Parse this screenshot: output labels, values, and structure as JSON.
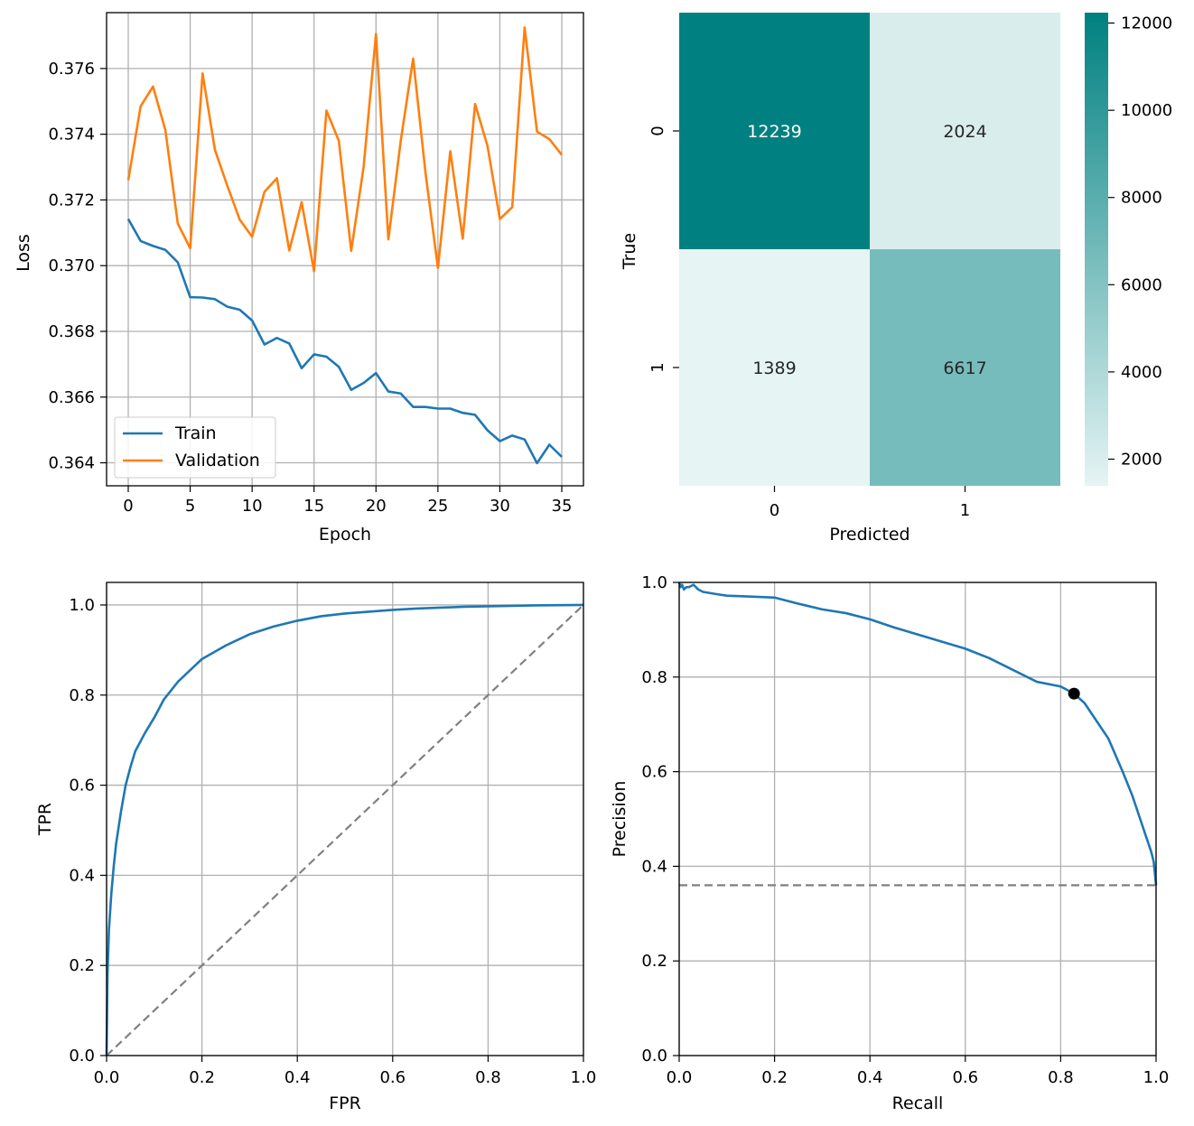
{
  "chart_data": [
    {
      "type": "line",
      "xlabel": "Epoch",
      "ylabel": "Loss",
      "xlim": [
        -1.75,
        36.75
      ],
      "ylim": [
        0.3633,
        0.3777
      ],
      "xticks": [
        0,
        5,
        10,
        15,
        20,
        25,
        30,
        35
      ],
      "yticks": [
        0.364,
        0.366,
        0.368,
        0.37,
        0.372,
        0.374,
        0.376
      ],
      "grid": true,
      "legend": "lower-left",
      "x": [
        0,
        1,
        2,
        3,
        4,
        5,
        6,
        7,
        8,
        9,
        10,
        11,
        12,
        13,
        14,
        15,
        16,
        17,
        18,
        19,
        20,
        21,
        22,
        23,
        24,
        25,
        26,
        27,
        28,
        29,
        30,
        31,
        32,
        33,
        34,
        35
      ],
      "series": [
        {
          "name": "Train",
          "color": "#1f77b4",
          "values": [
            0.37142,
            0.37075,
            0.3706,
            0.37048,
            0.3701,
            0.36904,
            0.36903,
            0.36898,
            0.36875,
            0.36866,
            0.36833,
            0.3676,
            0.3678,
            0.36763,
            0.36688,
            0.3673,
            0.36723,
            0.36692,
            0.36622,
            0.36643,
            0.36673,
            0.36617,
            0.36611,
            0.3657,
            0.3657,
            0.36565,
            0.36565,
            0.36552,
            0.36546,
            0.36499,
            0.36466,
            0.36483,
            0.36471,
            0.36399,
            0.36455,
            0.36418
          ]
        },
        {
          "name": "Validation",
          "color": "#ff7f0e",
          "values": [
            0.3726,
            0.37485,
            0.37545,
            0.37412,
            0.37128,
            0.37053,
            0.37585,
            0.37352,
            0.37243,
            0.3714,
            0.37088,
            0.37225,
            0.37266,
            0.37046,
            0.37193,
            0.36983,
            0.37472,
            0.3738,
            0.37045,
            0.373,
            0.37705,
            0.3708,
            0.3738,
            0.3763,
            0.37282,
            0.36993,
            0.37348,
            0.37082,
            0.37492,
            0.37365,
            0.37142,
            0.37178,
            0.37725,
            0.37408,
            0.37385,
            0.37337
          ]
        }
      ]
    },
    {
      "type": "heatmap",
      "xlabel": "Predicted",
      "ylabel": "True",
      "x_categories": [
        "0",
        "1"
      ],
      "y_categories": [
        "0",
        "1"
      ],
      "matrix": [
        [
          12239,
          2024
        ],
        [
          1389,
          6617
        ]
      ],
      "colorbar": {
        "min": 1389,
        "max": 12239,
        "ticks": [
          "2000",
          "4000",
          "6000",
          "8000",
          "10000",
          "12000"
        ],
        "color_low": "#e6f4f4",
        "color_high": "#008080"
      }
    },
    {
      "type": "line",
      "xlabel": "FPR",
      "ylabel": "TPR",
      "xlim": [
        0,
        1
      ],
      "ylim": [
        0,
        1.05
      ],
      "xticks": [
        "0.0",
        "0.2",
        "0.4",
        "0.6",
        "0.8",
        "1.0"
      ],
      "yticks": [
        "0.0",
        "0.2",
        "0.4",
        "0.6",
        "0.8",
        "1.0"
      ],
      "grid": true,
      "series": [
        {
          "color": "#1f77b4",
          "x": [
            0,
            0.002,
            0.005,
            0.01,
            0.015,
            0.02,
            0.03,
            0.04,
            0.05,
            0.06,
            0.08,
            0.1,
            0.12,
            0.15,
            0.18,
            0.2,
            0.25,
            0.3,
            0.35,
            0.4,
            0.45,
            0.5,
            0.55,
            0.6,
            0.65,
            0.7,
            0.75,
            0.8,
            0.85,
            0.9,
            0.95,
            1.0
          ],
          "y": [
            0,
            0.18,
            0.28,
            0.36,
            0.42,
            0.47,
            0.54,
            0.6,
            0.64,
            0.675,
            0.715,
            0.75,
            0.79,
            0.83,
            0.86,
            0.88,
            0.91,
            0.935,
            0.952,
            0.965,
            0.975,
            0.981,
            0.985,
            0.989,
            0.992,
            0.994,
            0.996,
            0.997,
            0.998,
            0.999,
            0.9995,
            1.0
          ]
        },
        {
          "color": "#808080",
          "style": "dashed",
          "x": [
            0,
            1
          ],
          "y": [
            0,
            1
          ]
        }
      ]
    },
    {
      "type": "line",
      "xlabel": "Recall",
      "ylabel": "Precision",
      "xlim": [
        0,
        1
      ],
      "ylim": [
        0,
        1
      ],
      "xticks": [
        "0.0",
        "0.2",
        "0.4",
        "0.6",
        "0.8",
        "1.0"
      ],
      "yticks": [
        "0.0",
        "0.2",
        "0.4",
        "0.6",
        "0.8",
        "1.0"
      ],
      "grid": true,
      "series": [
        {
          "color": "#1f77b4",
          "x": [
            0,
            0.003,
            0.006,
            0.01,
            0.015,
            0.02,
            0.03,
            0.04,
            0.05,
            0.08,
            0.1,
            0.15,
            0.2,
            0.25,
            0.3,
            0.35,
            0.4,
            0.45,
            0.5,
            0.55,
            0.6,
            0.65,
            0.7,
            0.75,
            0.8,
            0.828,
            0.85,
            0.9,
            0.93,
            0.95,
            0.97,
            0.98,
            0.99,
            0.995,
            1.0
          ],
          "y": [
            1.0,
            0.99,
            0.995,
            0.985,
            0.99,
            0.99,
            0.995,
            0.985,
            0.98,
            0.975,
            0.972,
            0.97,
            0.968,
            0.955,
            0.943,
            0.935,
            0.922,
            0.905,
            0.89,
            0.875,
            0.86,
            0.84,
            0.815,
            0.79,
            0.78,
            0.765,
            0.745,
            0.67,
            0.6,
            0.55,
            0.49,
            0.46,
            0.43,
            0.41,
            0.36
          ]
        },
        {
          "color": "#808080",
          "style": "dashed",
          "x": [
            0,
            1
          ],
          "y": [
            0.36,
            0.36
          ]
        }
      ],
      "marker": {
        "x": 0.828,
        "y": 0.765,
        "color": "#000000"
      }
    }
  ]
}
